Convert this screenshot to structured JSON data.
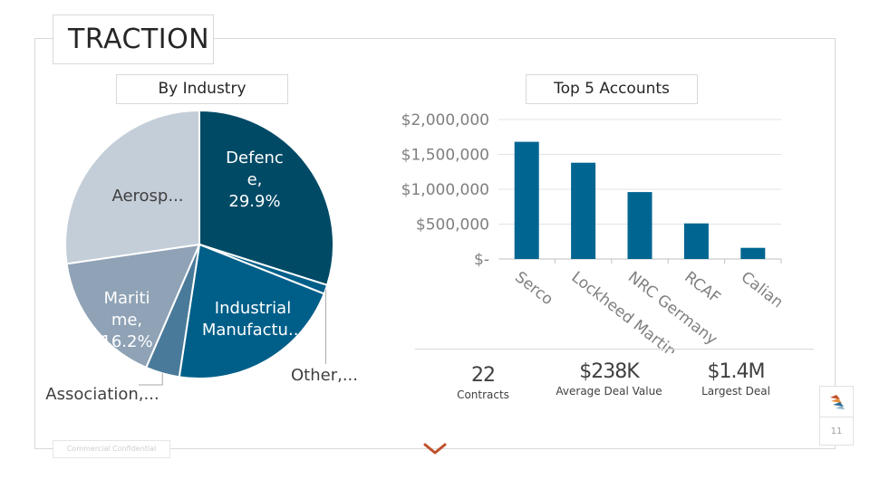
{
  "title": "TRACTION",
  "footer": {
    "confidential": "Commercial Confidential",
    "page_number": "11"
  },
  "colors": {
    "dark_teal": "#004a66",
    "teal": "#005f89",
    "steel": "#4a7a99",
    "slate": "#8fa2b6",
    "light": "#c4ced8",
    "bar": "#006591",
    "accent": "#c0502b"
  },
  "icons": {
    "logo": "company-logo-icon",
    "nav": "chevron-down-icon"
  },
  "chart_data": [
    {
      "type": "pie",
      "title": "By Industry",
      "slices": [
        {
          "name": "Defence",
          "value": 29.9,
          "label_lines": [
            "Defenc",
            "e,",
            "29.9%"
          ],
          "color": "#004a66"
        },
        {
          "name": "Other",
          "value": 1.1,
          "label_lines": [
            "Other,..."
          ],
          "color": "#005f89"
        },
        {
          "name": "Industrial Manufacturing",
          "value": 21.4,
          "label_lines": [
            "Industrial",
            "Manufactu..."
          ],
          "color": "#005f89"
        },
        {
          "name": "Association",
          "value": 4.1,
          "label_lines": [
            "Association,..."
          ],
          "color": "#4a7a99"
        },
        {
          "name": "Maritime",
          "value": 16.2,
          "label_lines": [
            "Mariti",
            "me,",
            "16.2%"
          ],
          "color": "#8fa2b6"
        },
        {
          "name": "Aerospace",
          "value": 27.3,
          "label_lines": [
            "Aerosp..."
          ],
          "color": "#c4ced8"
        }
      ]
    },
    {
      "type": "bar",
      "title": "Top 5 Accounts",
      "categories": [
        "Serco",
        "Lockheed Martin",
        "NRC Germany",
        "RCAF",
        "Calian"
      ],
      "values": [
        1680000,
        1380000,
        960000,
        510000,
        160000
      ],
      "ylim": [
        0,
        2000000
      ],
      "yticks": [
        0,
        500000,
        1000000,
        1500000,
        2000000
      ],
      "ytick_labels": [
        "$-",
        "$500,000",
        "$1,000,000",
        "$1,500,000",
        "$2,000,000"
      ],
      "xlabel": "",
      "ylabel": ""
    }
  ],
  "stats": [
    {
      "value": "22",
      "label": "Contracts"
    },
    {
      "value": "$238K",
      "label": "Average Deal Value"
    },
    {
      "value": "$1.4M",
      "label": "Largest Deal"
    }
  ]
}
